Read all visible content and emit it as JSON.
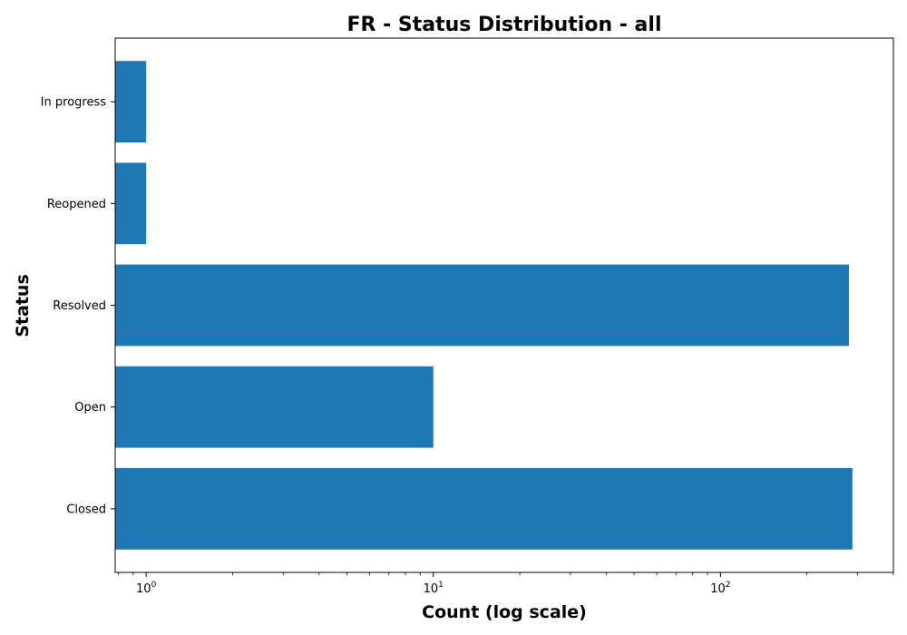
{
  "chart_data": {
    "type": "bar",
    "orientation": "horizontal",
    "title": "FR - Status Distribution - all",
    "xlabel": "Count (log scale)",
    "ylabel": "Status",
    "x_scale": "log",
    "xlim": [
      0.78,
      400
    ],
    "categories": [
      "Closed",
      "Open",
      "Resolved",
      "Reopened",
      "In progress"
    ],
    "values": [
      288,
      10,
      280,
      1,
      1
    ],
    "x_major_ticks": [
      {
        "value": 1,
        "base": "10",
        "exponent": "0"
      },
      {
        "value": 10,
        "base": "10",
        "exponent": "1"
      },
      {
        "value": 100,
        "base": "10",
        "exponent": "2"
      }
    ],
    "color": "#1f77b4",
    "grid": false,
    "legend": "none"
  }
}
